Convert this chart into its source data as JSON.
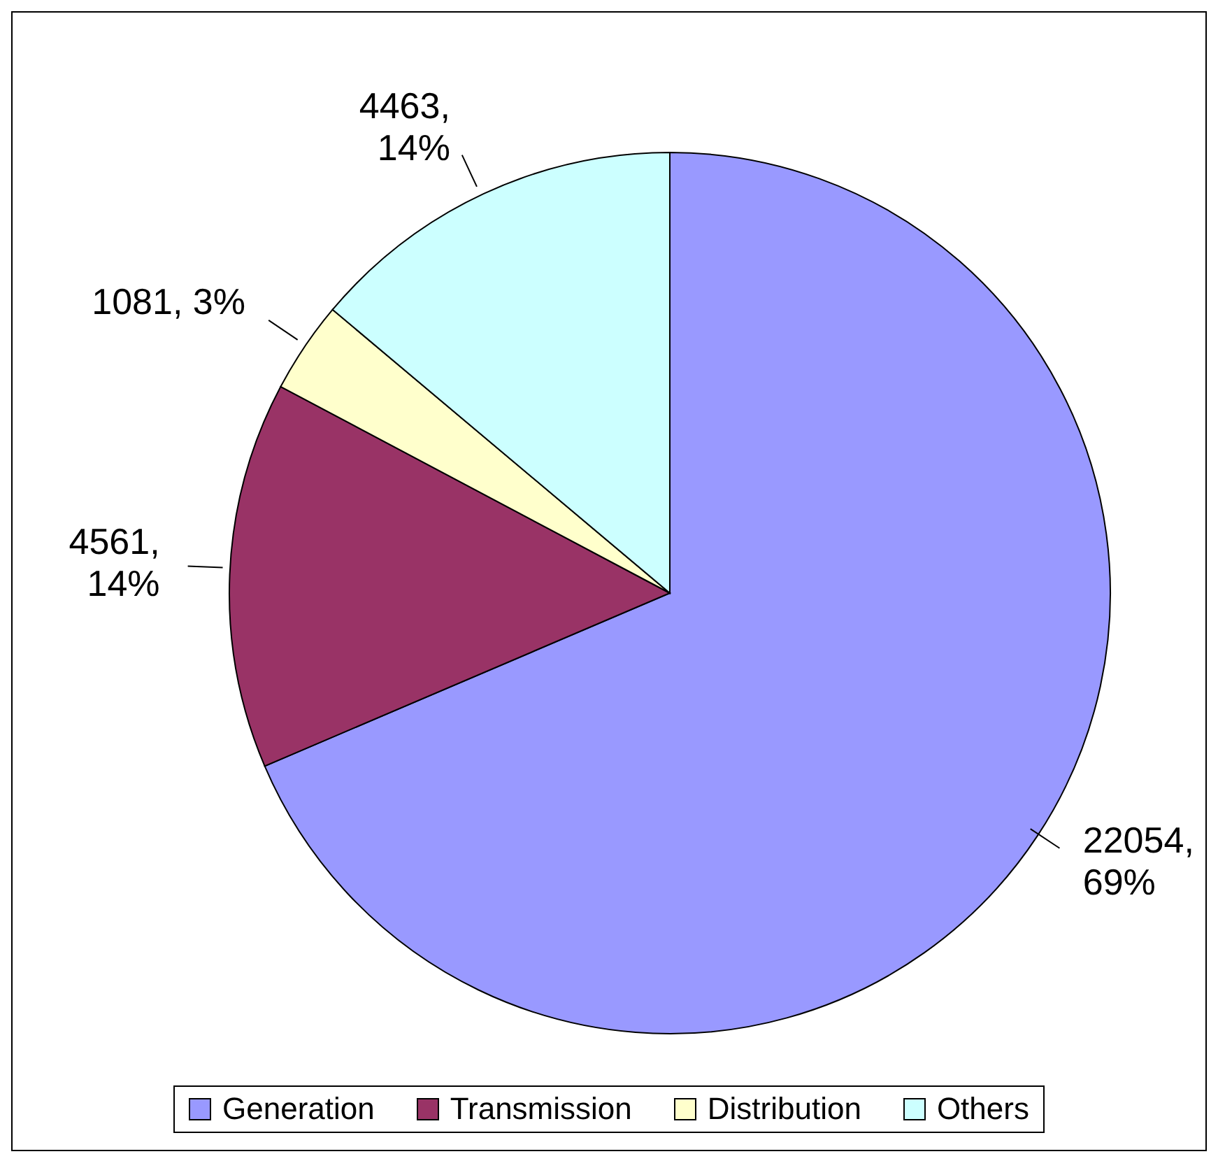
{
  "chart_data": {
    "type": "pie",
    "categories": [
      "Generation",
      "Transmission",
      "Distribution",
      "Others"
    ],
    "values": [
      22054,
      4561,
      1081,
      4463
    ],
    "colors": [
      "#9999ff",
      "#993366",
      "#ffffcc",
      "#ccffff"
    ],
    "value_labels": [
      "22054, 69%",
      "4561, 14%",
      "1081, 3%",
      "4463, 14%"
    ],
    "legend": "bottom"
  }
}
